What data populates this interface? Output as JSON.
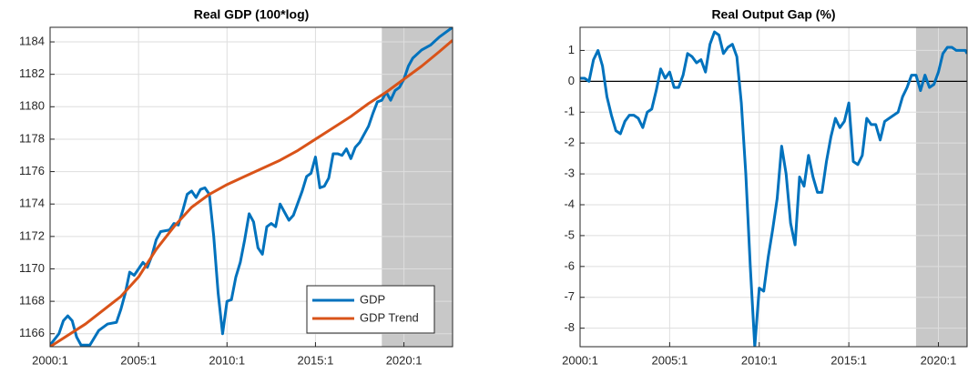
{
  "chart_data": [
    {
      "type": "line",
      "title": "Real GDP (100*log)",
      "x": [
        2000.0,
        2000.5,
        2000.75,
        2001.0,
        2001.25,
        2001.5,
        2001.75,
        2002.25,
        2002.75,
        2003.25,
        2003.75,
        2004.0,
        2004.25,
        2004.5,
        2004.75,
        2005.0,
        2005.25,
        2005.5,
        2005.75,
        2006.0,
        2006.25,
        2006.75,
        2007.0,
        2007.25,
        2007.5,
        2007.75,
        2008.0,
        2008.25,
        2008.5,
        2008.75,
        2009.0,
        2009.25,
        2009.5,
        2009.75,
        2010.0,
        2010.25,
        2010.5,
        2010.75,
        2011.0,
        2011.25,
        2011.5,
        2011.75,
        2012.0,
        2012.25,
        2012.5,
        2012.75,
        2013.0,
        2013.25,
        2013.5,
        2013.75,
        2014.25,
        2014.5,
        2014.75,
        2015.0,
        2015.25,
        2015.5,
        2015.75,
        2016.0,
        2016.25,
        2016.5,
        2016.75,
        2017.0,
        2017.25,
        2017.5,
        2017.75,
        2018.0,
        2018.25,
        2018.5,
        2018.75,
        2019.0,
        2019.25,
        2019.5,
        2019.75,
        2020.0,
        2020.25,
        2020.5,
        2021.0,
        2021.5,
        2022.0,
        2022.75
      ],
      "series": [
        {
          "name": "GDP",
          "color": "#0072bd",
          "values": [
            1165.3,
            1166.0,
            1166.8,
            1167.1,
            1166.8,
            1165.8,
            1165.3,
            1165.3,
            1166.2,
            1166.6,
            1166.7,
            1167.5,
            1168.5,
            1169.8,
            1169.6,
            1170.0,
            1170.4,
            1170.1,
            1170.8,
            1171.8,
            1172.3,
            1172.4,
            1172.8,
            1172.7,
            1173.6,
            1174.6,
            1174.8,
            1174.4,
            1174.9,
            1175.0,
            1174.6,
            1172.0,
            1168.5,
            1166.0,
            1168.0,
            1168.1,
            1169.5,
            1170.4,
            1171.8,
            1173.4,
            1172.9,
            1171.3,
            1170.9,
            1172.6,
            1172.8,
            1172.6,
            1174.0,
            1173.5,
            1173.0,
            1173.3,
            1174.8,
            1175.7,
            1175.9,
            1176.9,
            1175.0,
            1175.1,
            1175.6,
            1177.1,
            1177.1,
            1177.0,
            1177.4,
            1176.8,
            1177.5,
            1177.8,
            1178.3,
            1178.8,
            1179.6,
            1180.3,
            1180.4,
            1180.9,
            1180.4,
            1181.0,
            1181.2,
            1181.7,
            1182.5,
            1183.0,
            1183.5,
            1183.8,
            1184.3,
            1184.9
          ]
        },
        {
          "name": "GDP Trend",
          "color": "#d95319",
          "x": [
            2000,
            2002,
            2004,
            2005,
            2006,
            2007,
            2008,
            2009,
            2010,
            2011,
            2012,
            2013,
            2014,
            2015,
            2016,
            2017,
            2018,
            2019,
            2020,
            2021,
            2022,
            2022.75
          ],
          "values": [
            1165.2,
            1166.6,
            1168.3,
            1169.5,
            1171.2,
            1172.6,
            1173.8,
            1174.6,
            1175.2,
            1175.7,
            1176.2,
            1176.7,
            1177.3,
            1178.0,
            1178.7,
            1179.4,
            1180.2,
            1180.9,
            1181.7,
            1182.5,
            1183.4,
            1184.1
          ]
        }
      ],
      "xlim": [
        2000,
        2022.75
      ],
      "ylim": [
        1165.2,
        1184.9
      ],
      "xticks": [
        {
          "value": 2000,
          "label": "2000:1"
        },
        {
          "value": 2005,
          "label": "2005:1"
        },
        {
          "value": 2010,
          "label": "2010:1"
        },
        {
          "value": 2015,
          "label": "2015:1"
        },
        {
          "value": 2020,
          "label": "2020:1"
        }
      ],
      "yticks": [
        1166,
        1168,
        1170,
        1172,
        1174,
        1176,
        1178,
        1180,
        1182,
        1184
      ],
      "grid": true,
      "shade": [
        2018.75,
        2022.75
      ],
      "shade_color": "#c8c8c8",
      "legend": "lower right"
    },
    {
      "type": "line",
      "title": "Real Output Gap (%)",
      "x": [
        2000.0,
        2000.25,
        2000.5,
        2000.75,
        2001.0,
        2001.25,
        2001.5,
        2001.75,
        2002.0,
        2002.25,
        2002.5,
        2002.75,
        2003.0,
        2003.25,
        2003.5,
        2003.75,
        2004.0,
        2004.25,
        2004.5,
        2004.75,
        2005.0,
        2005.25,
        2005.5,
        2005.75,
        2006.0,
        2006.25,
        2006.5,
        2006.75,
        2007.0,
        2007.25,
        2007.5,
        2007.75,
        2008.0,
        2008.25,
        2008.5,
        2008.75,
        2009.0,
        2009.25,
        2009.5,
        2009.75,
        2010.0,
        2010.25,
        2010.5,
        2010.75,
        2011.0,
        2011.25,
        2011.5,
        2011.75,
        2012.0,
        2012.25,
        2012.5,
        2012.75,
        2013.0,
        2013.25,
        2013.5,
        2013.75,
        2014.0,
        2014.25,
        2014.5,
        2014.75,
        2015.0,
        2015.25,
        2015.5,
        2015.75,
        2016.0,
        2016.25,
        2016.5,
        2016.75,
        2017.0,
        2017.25,
        2017.5,
        2017.75,
        2018.0,
        2018.25,
        2018.5,
        2018.75,
        2019.0,
        2019.25,
        2019.5,
        2019.75,
        2020.0,
        2020.25,
        2020.5,
        2020.75,
        2021.0,
        2021.5,
        2021.6
      ],
      "series": [
        {
          "name": "Output Gap",
          "color": "#0072bd",
          "values": [
            0.1,
            0.1,
            0.0,
            0.7,
            1.0,
            0.5,
            -0.5,
            -1.1,
            -1.6,
            -1.7,
            -1.3,
            -1.1,
            -1.1,
            -1.2,
            -1.5,
            -1.0,
            -0.9,
            -0.3,
            0.4,
            0.1,
            0.3,
            -0.2,
            -0.2,
            0.2,
            0.9,
            0.8,
            0.6,
            0.7,
            0.3,
            1.2,
            1.6,
            1.5,
            0.9,
            1.1,
            1.2,
            0.8,
            -0.7,
            -3.0,
            -6.0,
            -8.6,
            -6.7,
            -6.8,
            -5.7,
            -4.8,
            -3.8,
            -2.1,
            -3.0,
            -4.6,
            -5.3,
            -3.1,
            -3.4,
            -2.4,
            -3.1,
            -3.6,
            -3.6,
            -2.6,
            -1.8,
            -1.2,
            -1.5,
            -1.3,
            -0.7,
            -2.6,
            -2.7,
            -2.4,
            -1.2,
            -1.4,
            -1.4,
            -1.9,
            -1.3,
            -1.2,
            -1.1,
            -1.0,
            -0.5,
            -0.2,
            0.2,
            0.2,
            -0.3,
            0.2,
            -0.2,
            -0.1,
            0.3,
            0.9,
            1.1,
            1.1,
            1.0,
            1.0,
            0.9
          ]
        }
      ],
      "xlim": [
        2000,
        2021.6
      ],
      "ylim": [
        -8.6,
        1.75
      ],
      "xticks": [
        {
          "value": 2000,
          "label": "2000:1"
        },
        {
          "value": 2005,
          "label": "2005:1"
        },
        {
          "value": 2010,
          "label": "2010:1"
        },
        {
          "value": 2015,
          "label": "2015:1"
        },
        {
          "value": 2020,
          "label": "2020:1"
        }
      ],
      "yticks": [
        -8,
        -7,
        -6,
        -5,
        -4,
        -3,
        -2,
        -1,
        0,
        1
      ],
      "grid": true,
      "shade": [
        2018.75,
        2021.6
      ],
      "shade_color": "#c8c8c8",
      "reference_line": 0
    }
  ]
}
